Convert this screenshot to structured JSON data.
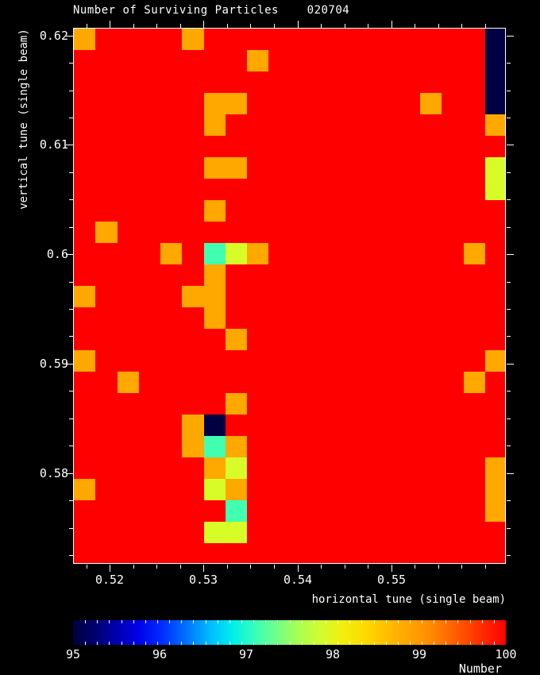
{
  "chart_data": {
    "type": "heatmap",
    "title": "Number of Surviving Particles    020704",
    "xlabel": "horizontal tune (single beam)",
    "ylabel": "vertical tune (single beam)",
    "grid_lines": false,
    "x_axis": {
      "range": [
        0.5161,
        0.5622
      ],
      "major_ticks": [
        {
          "value": 0.52,
          "label": "0.52"
        },
        {
          "value": 0.53,
          "label": "0.53"
        },
        {
          "value": 0.54,
          "label": "0.54"
        },
        {
          "value": 0.55,
          "label": "0.55"
        }
      ],
      "minor_step": 0.0025
    },
    "y_axis": {
      "range": [
        0.5717,
        0.6207
      ],
      "major_ticks": [
        {
          "value": 0.62,
          "label": "0.62"
        },
        {
          "value": 0.61,
          "label": "0.61"
        },
        {
          "value": 0.6,
          "label": "0.6"
        },
        {
          "value": 0.59,
          "label": "0.59"
        },
        {
          "value": 0.58,
          "label": "0.58"
        }
      ],
      "minor_step": 0.0025
    },
    "grid": {
      "cols": 20,
      "rows": 25
    },
    "default_cell": "red",
    "palette": {
      "red": {
        "hex": "#FF0000",
        "approx_value": 100
      },
      "orange": {
        "hex": "#FFA800",
        "approx_value": 99
      },
      "yellow_green": {
        "hex": "#D8FC28",
        "approx_value": 98.3
      },
      "spring_green": {
        "hex": "#40FFB0",
        "approx_value": 97.2
      },
      "navy": {
        "hex": "#000042",
        "approx_value": 95.1
      }
    },
    "cells": [
      {
        "col": 0,
        "row": 0,
        "color": "orange"
      },
      {
        "col": 5,
        "row": 0,
        "color": "orange"
      },
      {
        "col": 19,
        "row": 0,
        "color": "navy"
      },
      {
        "col": 8,
        "row": 1,
        "color": "orange"
      },
      {
        "col": 19,
        "row": 1,
        "color": "navy"
      },
      {
        "col": 19,
        "row": 2,
        "color": "navy"
      },
      {
        "col": 6,
        "row": 3,
        "color": "orange"
      },
      {
        "col": 7,
        "row": 3,
        "color": "orange"
      },
      {
        "col": 16,
        "row": 3,
        "color": "orange"
      },
      {
        "col": 19,
        "row": 3,
        "color": "navy"
      },
      {
        "col": 6,
        "row": 4,
        "color": "orange"
      },
      {
        "col": 19,
        "row": 4,
        "color": "orange"
      },
      {
        "col": 6,
        "row": 6,
        "color": "orange"
      },
      {
        "col": 7,
        "row": 6,
        "color": "orange"
      },
      {
        "col": 19,
        "row": 6,
        "color": "yellow_green"
      },
      {
        "col": 19,
        "row": 7,
        "color": "yellow_green"
      },
      {
        "col": 6,
        "row": 8,
        "color": "orange"
      },
      {
        "col": 1,
        "row": 9,
        "color": "orange"
      },
      {
        "col": 4,
        "row": 10,
        "color": "orange"
      },
      {
        "col": 6,
        "row": 10,
        "color": "spring_green"
      },
      {
        "col": 7,
        "row": 10,
        "color": "yellow_green"
      },
      {
        "col": 8,
        "row": 10,
        "color": "orange"
      },
      {
        "col": 18,
        "row": 10,
        "color": "orange"
      },
      {
        "col": 6,
        "row": 11,
        "color": "orange"
      },
      {
        "col": 0,
        "row": 12,
        "color": "orange"
      },
      {
        "col": 5,
        "row": 12,
        "color": "orange"
      },
      {
        "col": 6,
        "row": 12,
        "color": "orange"
      },
      {
        "col": 6,
        "row": 13,
        "color": "orange"
      },
      {
        "col": 7,
        "row": 14,
        "color": "orange"
      },
      {
        "col": 0,
        "row": 15,
        "color": "orange"
      },
      {
        "col": 19,
        "row": 15,
        "color": "orange"
      },
      {
        "col": 2,
        "row": 16,
        "color": "orange"
      },
      {
        "col": 18,
        "row": 16,
        "color": "orange"
      },
      {
        "col": 7,
        "row": 17,
        "color": "orange"
      },
      {
        "col": 5,
        "row": 18,
        "color": "orange"
      },
      {
        "col": 6,
        "row": 18,
        "color": "navy"
      },
      {
        "col": 5,
        "row": 19,
        "color": "orange"
      },
      {
        "col": 6,
        "row": 19,
        "color": "spring_green"
      },
      {
        "col": 7,
        "row": 19,
        "color": "orange"
      },
      {
        "col": 6,
        "row": 20,
        "color": "orange"
      },
      {
        "col": 7,
        "row": 20,
        "color": "yellow_green"
      },
      {
        "col": 19,
        "row": 20,
        "color": "orange"
      },
      {
        "col": 0,
        "row": 21,
        "color": "orange"
      },
      {
        "col": 6,
        "row": 21,
        "color": "yellow_green"
      },
      {
        "col": 7,
        "row": 21,
        "color": "orange"
      },
      {
        "col": 19,
        "row": 21,
        "color": "orange"
      },
      {
        "col": 7,
        "row": 22,
        "color": "spring_green"
      },
      {
        "col": 19,
        "row": 22,
        "color": "orange"
      },
      {
        "col": 6,
        "row": 23,
        "color": "yellow_green"
      },
      {
        "col": 7,
        "row": 23,
        "color": "yellow_green"
      }
    ],
    "colorbar": {
      "label": "Number",
      "min": 95,
      "max": 100,
      "tick_labels": [
        "95",
        "96",
        "97",
        "98",
        "99",
        "100"
      ],
      "minor_tick_count": 36,
      "legend_position": "bottom",
      "gradient": [
        {
          "pos": 0.0,
          "hex": "#00003A"
        },
        {
          "pos": 0.05,
          "hex": "#000070"
        },
        {
          "pos": 0.1,
          "hex": "#0000B0"
        },
        {
          "pos": 0.15,
          "hex": "#0000E8"
        },
        {
          "pos": 0.2,
          "hex": "#0028FF"
        },
        {
          "pos": 0.26,
          "hex": "#0070FF"
        },
        {
          "pos": 0.32,
          "hex": "#00C0FF"
        },
        {
          "pos": 0.37,
          "hex": "#00F0E8"
        },
        {
          "pos": 0.42,
          "hex": "#38FFB8"
        },
        {
          "pos": 0.47,
          "hex": "#70FF88"
        },
        {
          "pos": 0.52,
          "hex": "#A8FF50"
        },
        {
          "pos": 0.57,
          "hex": "#D0FC30"
        },
        {
          "pos": 0.62,
          "hex": "#F0F010"
        },
        {
          "pos": 0.68,
          "hex": "#FFD800"
        },
        {
          "pos": 0.75,
          "hex": "#FFB000"
        },
        {
          "pos": 0.82,
          "hex": "#FF9000"
        },
        {
          "pos": 0.9,
          "hex": "#FF5000"
        },
        {
          "pos": 1.0,
          "hex": "#FE0000"
        }
      ]
    }
  }
}
